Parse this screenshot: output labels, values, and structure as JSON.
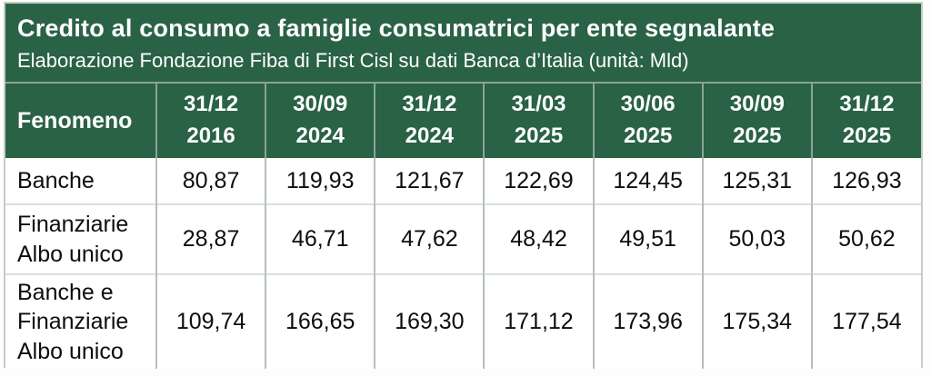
{
  "header": {
    "title": "Credito al consumo a famiglie consumatrici per ente segnalante",
    "subtitle": "Elaborazione Fondazione Fiba di First Cisl su dati Banca d’Italia (unità: Mld)"
  },
  "colors": {
    "green": "#2a6245",
    "divider-green": "#87a794",
    "divider-v": "#b6c0b9",
    "divider-h": "#d9e0da",
    "frame": "#c3cdc5",
    "ink": "#0d0d0d"
  },
  "table": {
    "columns": [
      "Fenomeno",
      "31/12\n2016",
      "30/09\n2024",
      "31/12\n2024",
      "31/03\n2025",
      "30/06\n2025",
      "30/09\n2025",
      "31/12\n2025"
    ],
    "rows": [
      {
        "label": "Banche",
        "values": [
          "80,87",
          "119,93",
          "121,67",
          "122,69",
          "124,45",
          "125,31",
          "126,93"
        ]
      },
      {
        "label": "Finanziarie\nAlbo unico",
        "values": [
          "28,87",
          "46,71",
          "47,62",
          "48,42",
          "49,51",
          "50,03",
          "50,62"
        ]
      },
      {
        "label": "Banche e\nFinanziarie\nAlbo unico",
        "values": [
          "109,74",
          "166,65",
          "169,30",
          "171,12",
          "173,96",
          "175,34",
          "177,54"
        ]
      }
    ]
  },
  "chart_data": {
    "type": "table",
    "title": "Credito al consumo a famiglie consumatrici per ente segnalante",
    "subtitle": "Elaborazione Fondazione Fiba di First Cisl su dati Banca d’Italia (unità: Mld)",
    "unit": "Mld",
    "categories": [
      "31/12 2016",
      "30/09 2024",
      "31/12 2024",
      "31/03 2025",
      "30/06 2025",
      "30/09 2025",
      "31/12 2025"
    ],
    "series": [
      {
        "name": "Banche",
        "values": [
          80.87,
          119.93,
          121.67,
          122.69,
          124.45,
          125.31,
          126.93
        ]
      },
      {
        "name": "Finanziarie Albo unico",
        "values": [
          28.87,
          46.71,
          47.62,
          48.42,
          49.51,
          50.03,
          50.62
        ]
      },
      {
        "name": "Banche e Finanziarie Albo unico",
        "values": [
          109.74,
          166.65,
          169.3,
          171.12,
          173.96,
          175.34,
          177.54
        ]
      }
    ]
  }
}
